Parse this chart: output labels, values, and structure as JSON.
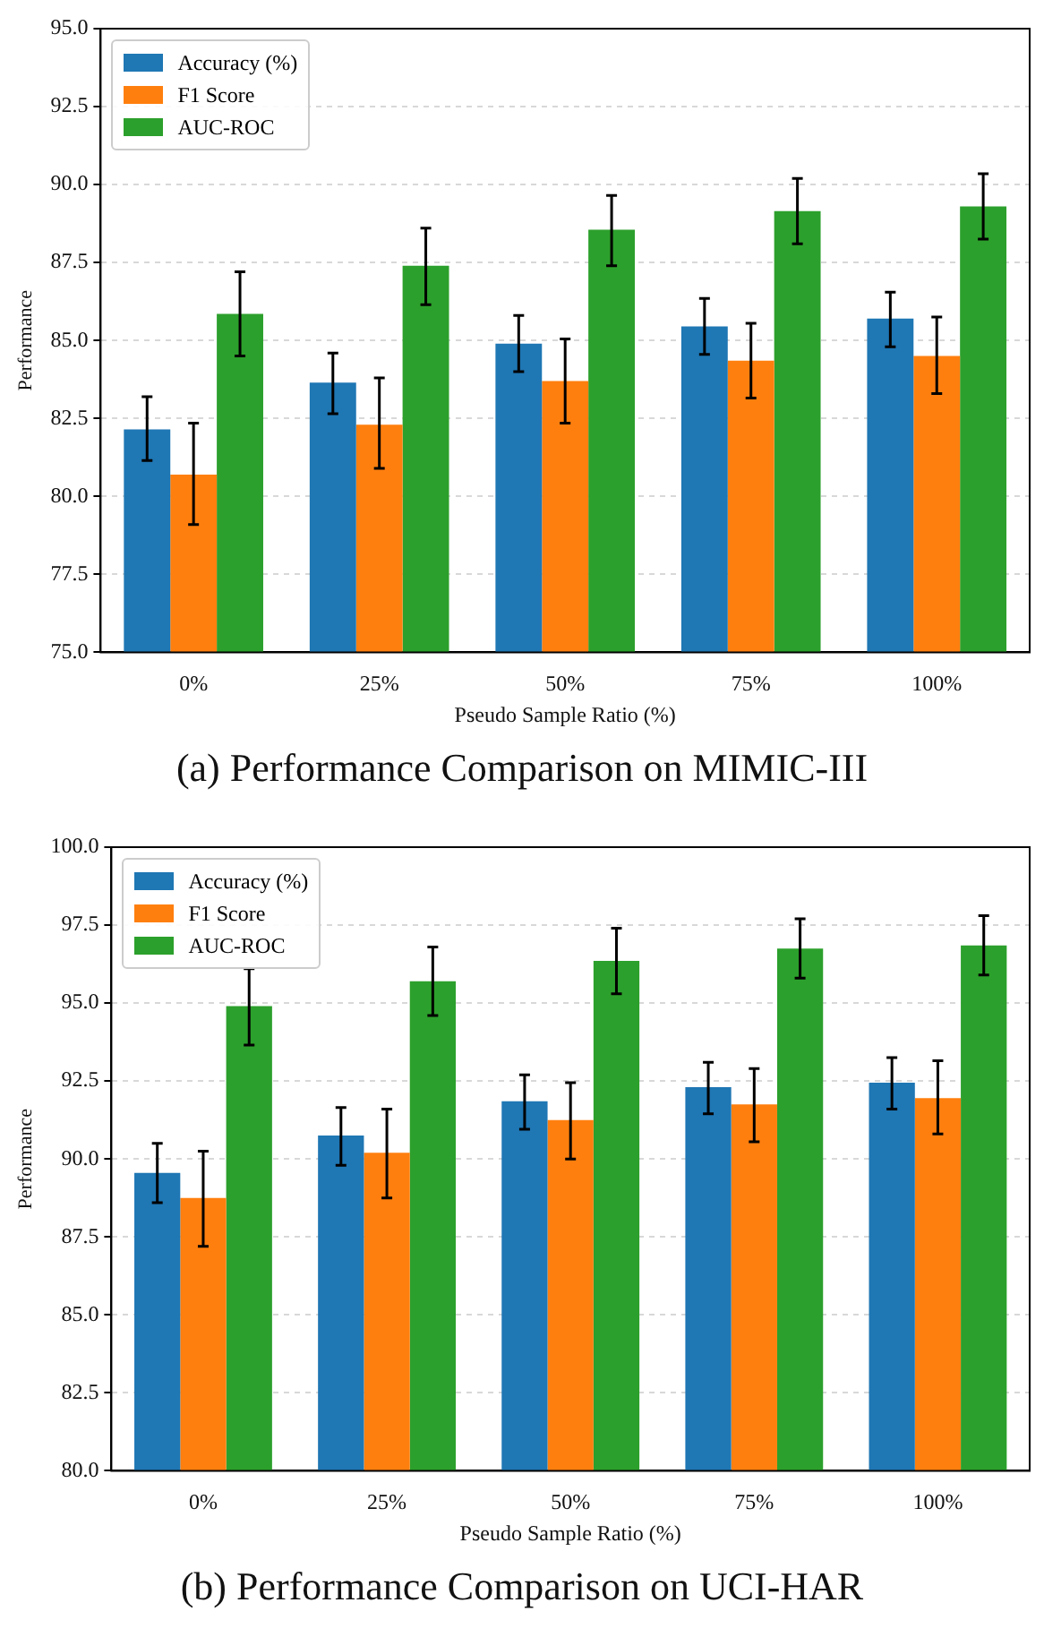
{
  "chart_data": [
    {
      "type": "bar",
      "title": "(a) Performance Comparison on MIMIC-III",
      "xlabel": "Pseudo Sample Ratio (%)",
      "ylabel": "Performance",
      "categories": [
        "0%",
        "25%",
        "50%",
        "75%",
        "100%"
      ],
      "series": [
        {
          "name": "Accuracy (%)",
          "color": "#1f77b4",
          "values": [
            82.15,
            83.65,
            84.9,
            85.45,
            85.7
          ],
          "errors": [
            [
              81.15,
              83.2
            ],
            [
              82.65,
              84.6
            ],
            [
              84.0,
              85.8
            ],
            [
              84.55,
              86.35
            ],
            [
              84.8,
              86.55
            ]
          ]
        },
        {
          "name": "F1 Score",
          "color": "#ff7f0e",
          "values": [
            80.7,
            82.3,
            83.7,
            84.35,
            84.5
          ],
          "errors": [
            [
              79.1,
              82.35
            ],
            [
              80.9,
              83.8
            ],
            [
              82.35,
              85.05
            ],
            [
              83.15,
              85.55
            ],
            [
              83.3,
              85.75
            ]
          ]
        },
        {
          "name": "AUC-ROC",
          "color": "#2ca02c",
          "values": [
            85.85,
            87.4,
            88.55,
            89.15,
            89.3
          ],
          "errors": [
            [
              84.5,
              87.2
            ],
            [
              86.15,
              88.6
            ],
            [
              87.4,
              89.65
            ],
            [
              88.1,
              90.2
            ],
            [
              88.25,
              90.35
            ]
          ]
        }
      ],
      "ylim": [
        75,
        95
      ],
      "yticks": [
        {
          "value": 75,
          "label": "75.0"
        },
        {
          "value": 77.5,
          "label": "77.5"
        },
        {
          "value": 80,
          "label": "80.0"
        },
        {
          "value": 82.5,
          "label": "82.5"
        },
        {
          "value": 85,
          "label": "85.0"
        },
        {
          "value": 87.5,
          "label": "87.5"
        },
        {
          "value": 90,
          "label": "90.0"
        },
        {
          "value": 92.5,
          "label": "92.5"
        },
        {
          "value": 95,
          "label": "95.0"
        }
      ],
      "grid": "y",
      "legend": "top left"
    },
    {
      "type": "bar",
      "title": "(b) Performance Comparison on UCI-HAR",
      "xlabel": "Pseudo Sample Ratio (%)",
      "ylabel": "Performance",
      "categories": [
        "0%",
        "25%",
        "50%",
        "75%",
        "100%"
      ],
      "series": [
        {
          "name": "Accuracy (%)",
          "color": "#1f77b4",
          "values": [
            89.55,
            90.75,
            91.85,
            92.3,
            92.45
          ],
          "errors": [
            [
              88.6,
              90.5
            ],
            [
              89.8,
              91.65
            ],
            [
              90.95,
              92.7
            ],
            [
              91.45,
              93.1
            ],
            [
              91.6,
              93.25
            ]
          ]
        },
        {
          "name": "F1 Score",
          "color": "#ff7f0e",
          "values": [
            88.75,
            90.2,
            91.25,
            91.75,
            91.95
          ],
          "errors": [
            [
              87.2,
              90.25
            ],
            [
              88.75,
              91.6
            ],
            [
              90.0,
              92.45
            ],
            [
              90.55,
              92.9
            ],
            [
              90.8,
              93.15
            ]
          ]
        },
        {
          "name": "AUC-ROC",
          "color": "#2ca02c",
          "values": [
            94.9,
            95.7,
            96.35,
            96.75,
            96.85
          ],
          "errors": [
            [
              93.65,
              96.1
            ],
            [
              94.6,
              96.8
            ],
            [
              95.3,
              97.4
            ],
            [
              95.8,
              97.7
            ],
            [
              95.9,
              97.8
            ]
          ]
        }
      ],
      "ylim": [
        80,
        100
      ],
      "yticks": [
        {
          "value": 80,
          "label": "80.0"
        },
        {
          "value": 82.5,
          "label": "82.5"
        },
        {
          "value": 85,
          "label": "85.0"
        },
        {
          "value": 87.5,
          "label": "87.5"
        },
        {
          "value": 90,
          "label": "90.0"
        },
        {
          "value": 92.5,
          "label": "92.5"
        },
        {
          "value": 95,
          "label": "95.0"
        },
        {
          "value": 97.5,
          "label": "97.5"
        },
        {
          "value": 100,
          "label": "100.0"
        }
      ],
      "grid": "y",
      "legend": "top left"
    }
  ]
}
